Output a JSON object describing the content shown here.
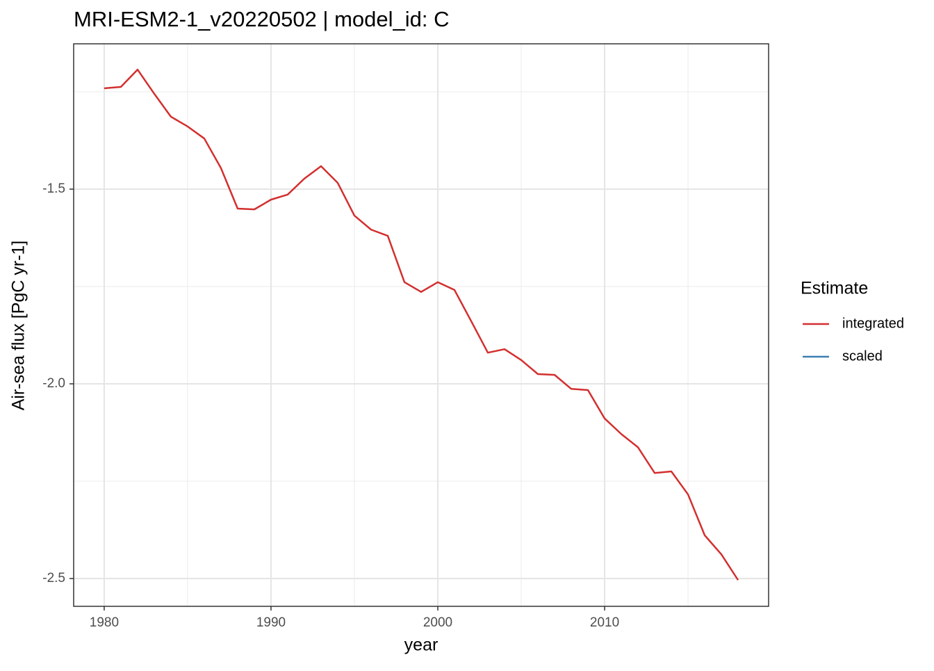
{
  "chart_data": {
    "type": "line",
    "title": "MRI-ESM2-1_v20220502 | model_id: C",
    "x_label": "year",
    "y_label": "Air-sea flux [PgC yr-1]",
    "x": [
      1980,
      1981,
      1982,
      1983,
      1984,
      1985,
      1986,
      1987,
      1988,
      1989,
      1990,
      1991,
      1992,
      1993,
      1994,
      1995,
      1996,
      1997,
      1998,
      1999,
      2000,
      2001,
      2002,
      2003,
      2004,
      2005,
      2006,
      2007,
      2008,
      2009,
      2010,
      2011,
      2012,
      2013,
      2014,
      2015,
      2016,
      2017,
      2018
    ],
    "series": [
      {
        "name": "integrated",
        "color": "#d32f2f",
        "values": [
          -1.241,
          -1.2375,
          -1.193,
          -1.255,
          -1.314,
          -1.339,
          -1.37,
          -1.446,
          -1.55,
          -1.552,
          -1.527,
          -1.514,
          -1.473,
          -1.441,
          -1.484,
          -1.568,
          -1.604,
          -1.62,
          -1.739,
          -1.764,
          -1.739,
          -1.759,
          -1.839,
          -1.92,
          -1.911,
          -1.939,
          -1.975,
          -1.977,
          -2.013,
          -2.016,
          -2.089,
          -2.129,
          -2.163,
          -2.229,
          -2.225,
          -2.284,
          -2.389,
          -2.438,
          -2.504
        ]
      },
      {
        "name": "scaled",
        "color": "#3a7fb5",
        "values": [
          null,
          null,
          null,
          null,
          null,
          null,
          null,
          null,
          null,
          null,
          null,
          null,
          null,
          null,
          null,
          null,
          null,
          null,
          null,
          null,
          null,
          null,
          null,
          null,
          null,
          null,
          null,
          null,
          null,
          null,
          null,
          null,
          null,
          null,
          null,
          null,
          null,
          null,
          null
        ]
      }
    ],
    "legend_title": "Estimate",
    "xlim": [
      1978.17,
      2019.83
    ],
    "ylim": [
      -2.5714,
      -1.1268
    ],
    "xticks": [
      1980,
      1990,
      2000,
      2010
    ],
    "yticks": [
      -2.5,
      {
        "value": -2,
        "label": "-2.0"
      },
      -1.5
    ],
    "xminor": [
      1985,
      1995,
      2005,
      2015
    ],
    "yminor": [
      -2.25,
      -1.75,
      -1.25
    ],
    "grid": true,
    "legend_position": "right"
  }
}
